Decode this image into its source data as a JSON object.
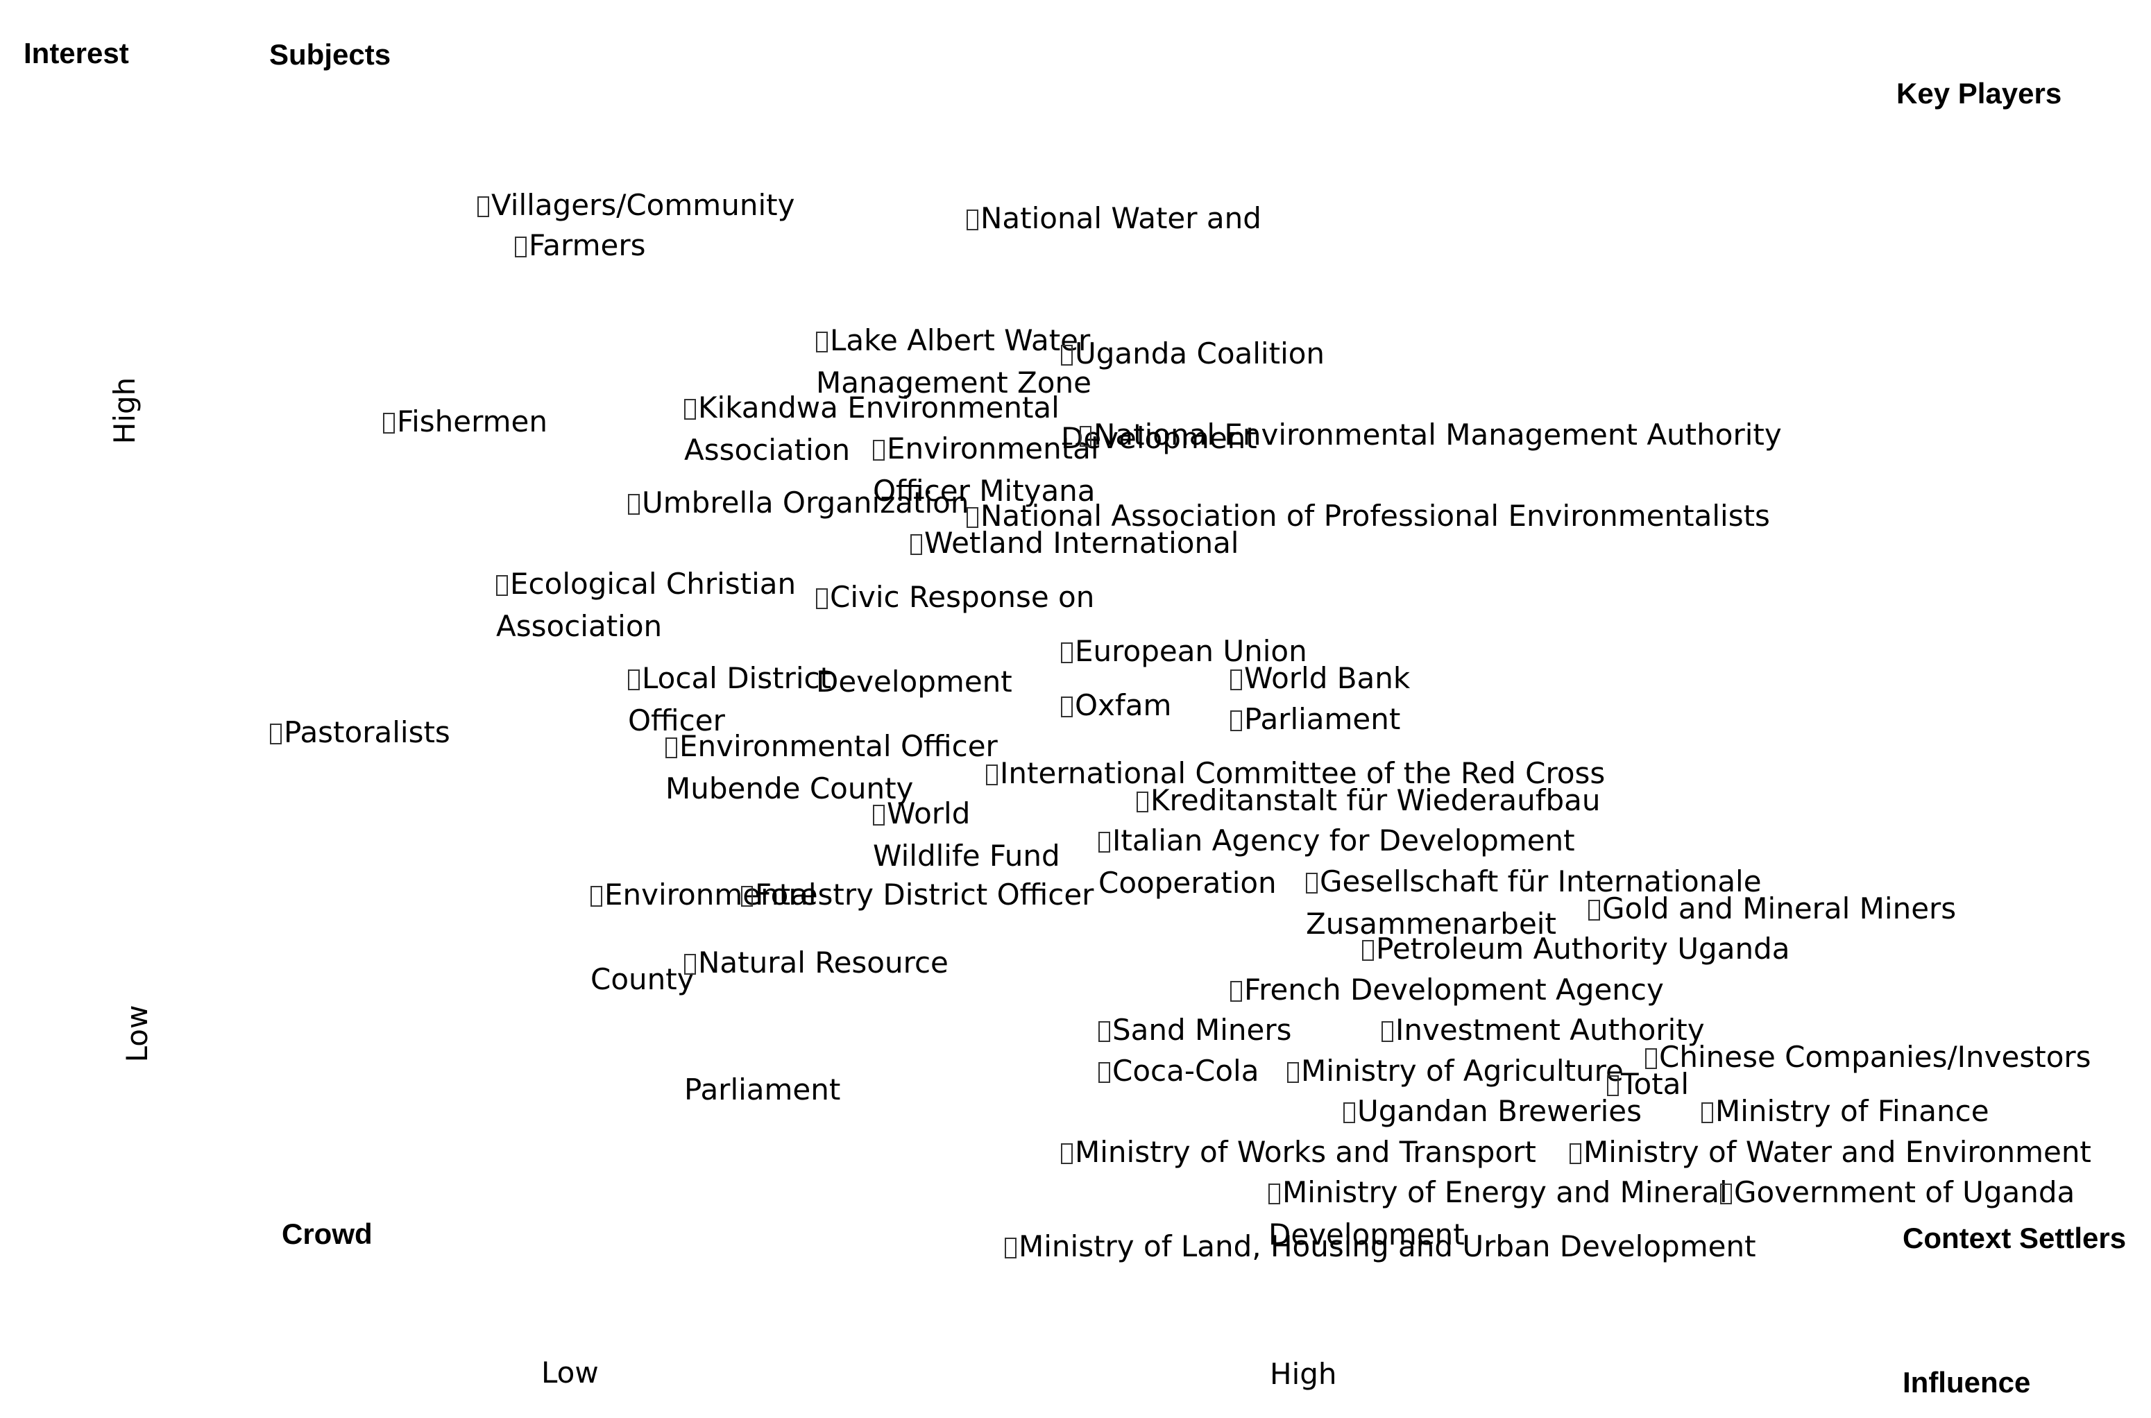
{
  "chart_data": {
    "type": "scatter",
    "title": "",
    "xlabel": "Influence",
    "ylabel": "Interest",
    "x_ticks": [
      "Low",
      "High"
    ],
    "y_ticks": [
      "High",
      "Low"
    ],
    "quadrants": {
      "top_left": "Subjects",
      "top_right": "Key Players",
      "bottom_left": "Crowd",
      "bottom_right": "Context Settlers"
    },
    "stakeholders": [
      {
        "label": "Villagers/Community",
        "lines": [
          "Villagers/Community"
        ],
        "x": 0.12,
        "y": 0.89
      },
      {
        "label": "Farmers",
        "lines": [
          "Farmers"
        ],
        "x": 0.14,
        "y": 0.86
      },
      {
        "label": "National Water and",
        "lines": [
          "National Water and"
        ],
        "x": 0.38,
        "y": 0.88
      },
      {
        "label": "Lake Albert Water Management Zone",
        "lines": [
          "Lake Albert Water",
          "Management Zone"
        ],
        "x": 0.3,
        "y": 0.79
      },
      {
        "label": "Uganda Coalition Development",
        "lines": [
          "Uganda Coalition",
          "",
          "Development"
        ],
        "x": 0.43,
        "y": 0.78
      },
      {
        "label": "Fishermen",
        "lines": [
          "Fishermen"
        ],
        "x": 0.07,
        "y": 0.73
      },
      {
        "label": "Kikandwa Environmental Association",
        "lines": [
          "Kikandwa Environmental",
          "Association"
        ],
        "x": 0.23,
        "y": 0.74
      },
      {
        "label": "Environmental Officer Mityana",
        "lines": [
          "Environmental",
          "Officer Mityana"
        ],
        "x": 0.33,
        "y": 0.71
      },
      {
        "label": "National Environmental Management Authority",
        "lines": [
          "National Environmental Management Authority"
        ],
        "x": 0.44,
        "y": 0.72
      },
      {
        "label": "Umbrella Organization",
        "lines": [
          "Umbrella Organization"
        ],
        "x": 0.2,
        "y": 0.67
      },
      {
        "label": "National Association of Professional Environmentalists",
        "lines": [
          "National Association of Professional Environmentalists"
        ],
        "x": 0.38,
        "y": 0.66
      },
      {
        "label": "Wetland International",
        "lines": [
          "Wetland International"
        ],
        "x": 0.35,
        "y": 0.64
      },
      {
        "label": "Ecological Christian Association",
        "lines": [
          "Ecological Christian",
          "Association"
        ],
        "x": 0.13,
        "y": 0.61
      },
      {
        "label": "Civic Response on Development",
        "lines": [
          "Civic Response on",
          "",
          "Development"
        ],
        "x": 0.3,
        "y": 0.6
      },
      {
        "label": "European Union",
        "lines": [
          "European Union"
        ],
        "x": 0.43,
        "y": 0.56
      },
      {
        "label": "Local District Officer",
        "lines": [
          "Local District",
          "Officer"
        ],
        "x": 0.2,
        "y": 0.54
      },
      {
        "label": "Oxfam",
        "lines": [
          "Oxfam"
        ],
        "x": 0.43,
        "y": 0.52
      },
      {
        "label": "World Bank",
        "lines": [
          "World Bank"
        ],
        "x": 0.52,
        "y": 0.54
      },
      {
        "label": "Parliament",
        "lines": [
          "Parliament"
        ],
        "x": 0.52,
        "y": 0.51
      },
      {
        "label": "Environmental Officer Mubende County",
        "lines": [
          "Environmental Officer",
          "Mubende County"
        ],
        "x": 0.22,
        "y": 0.49
      },
      {
        "label": "Pastoralists",
        "lines": [
          "Pastoralists"
        ],
        "x": 0.01,
        "y": 0.5
      },
      {
        "label": "International Committee of the Red Cross",
        "lines": [
          "International Committee of the Red Cross"
        ],
        "x": 0.39,
        "y": 0.47
      },
      {
        "label": "World Wildlife Fund",
        "lines": [
          "World",
          "Wildlife Fund"
        ],
        "x": 0.33,
        "y": 0.44
      },
      {
        "label": "Kreditanstalt für Wiederaufbau",
        "lines": [
          "Kreditanstalt für Wiederaufbau"
        ],
        "x": 0.47,
        "y": 0.45
      },
      {
        "label": "Italian Agency for Development Cooperation",
        "lines": [
          "Italian Agency for Development",
          "Cooperation"
        ],
        "x": 0.45,
        "y": 0.42
      },
      {
        "label": "Environmental County",
        "lines": [
          "Environmental",
          "",
          "County"
        ],
        "x": 0.18,
        "y": 0.38
      },
      {
        "label": "Forestry District Officer",
        "lines": [
          "Forestry District Officer"
        ],
        "x": 0.26,
        "y": 0.38
      },
      {
        "label": "Gesellschaft für Internationale Zusammenarbeit",
        "lines": [
          "Gesellschaft für Internationale",
          "Zusammenarbeit"
        ],
        "x": 0.56,
        "y": 0.39
      },
      {
        "label": "Gold and Mineral Miners",
        "lines": [
          "Gold and Mineral Miners"
        ],
        "x": 0.71,
        "y": 0.37
      },
      {
        "label": "Petroleum Authority Uganda",
        "lines": [
          "Petroleum Authority Uganda"
        ],
        "x": 0.59,
        "y": 0.34
      },
      {
        "label": "Natural Resource Parliament",
        "lines": [
          "Natural Resource",
          "",
          "",
          "Parliament"
        ],
        "x": 0.23,
        "y": 0.33
      },
      {
        "label": "French Development Agency",
        "lines": [
          "French Development Agency"
        ],
        "x": 0.52,
        "y": 0.31
      },
      {
        "label": "Sand Miners",
        "lines": [
          "Sand Miners"
        ],
        "x": 0.45,
        "y": 0.28
      },
      {
        "label": "Investment Authority",
        "lines": [
          "Investment Authority"
        ],
        "x": 0.6,
        "y": 0.28
      },
      {
        "label": "Coca-Cola",
        "lines": [
          "Coca-Cola"
        ],
        "x": 0.45,
        "y": 0.25
      },
      {
        "label": "Ministry of Agriculture",
        "lines": [
          "Ministry of Agriculture"
        ],
        "x": 0.55,
        "y": 0.25
      },
      {
        "label": "Chinese Companies/Investors",
        "lines": [
          "Chinese Companies/Investors"
        ],
        "x": 0.74,
        "y": 0.26
      },
      {
        "label": "Total",
        "lines": [
          "Total"
        ],
        "x": 0.72,
        "y": 0.24
      },
      {
        "label": "Ugandan Breweries",
        "lines": [
          "Ugandan Breweries"
        ],
        "x": 0.58,
        "y": 0.22
      },
      {
        "label": "Ministry of Finance",
        "lines": [
          "Ministry of Finance"
        ],
        "x": 0.77,
        "y": 0.22
      },
      {
        "label": "Ministry of Works and Transport",
        "lines": [
          "Ministry of Works and Transport"
        ],
        "x": 0.43,
        "y": 0.19
      },
      {
        "label": "Ministry of Water and Environment",
        "lines": [
          "Ministry of Water and Environment"
        ],
        "x": 0.7,
        "y": 0.19
      },
      {
        "label": "Ministry of Energy and Mineral Development",
        "lines": [
          "Ministry of Energy and Mineral",
          "Development"
        ],
        "x": 0.54,
        "y": 0.16
      },
      {
        "label": "Government of Uganda",
        "lines": [
          "Government of Uganda"
        ],
        "x": 0.78,
        "y": 0.16
      },
      {
        "label": "Ministry of Land, Housing and Urban Development",
        "lines": [
          "Ministry of Land, Housing and Urban Development"
        ],
        "x": 0.4,
        "y": 0.12
      }
    ]
  }
}
